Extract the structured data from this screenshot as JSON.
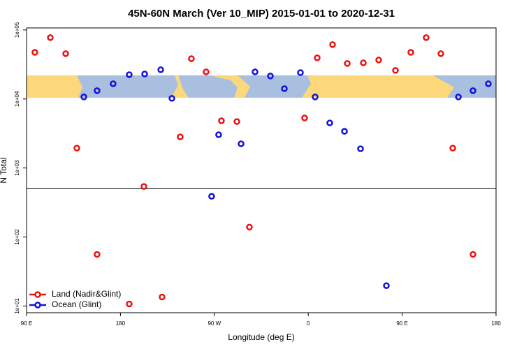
{
  "chart_data": {
    "type": "scatter",
    "title": "45N-60N March (Ver 10_MIP)   2015-01-01 to 2020-12-31",
    "x_label": "Longitude (deg E)",
    "y_label": "N Total",
    "xlim": [
      90,
      540
    ],
    "xticks": [
      {
        "value": 90,
        "label": "90 E"
      },
      180,
      {
        "value": 270,
        "label": "90 W"
      },
      {
        "value": 360,
        "label": "0"
      },
      {
        "value": 450,
        "label": "90 E"
      },
      {
        "value": 540,
        "label": "180"
      }
    ],
    "ylim": [
      8,
      107000
    ],
    "log_y": true,
    "yticks": [
      {
        "value": 10,
        "label": "1e+01"
      },
      {
        "value": 100,
        "label": "1e+02"
      },
      {
        "value": 1000,
        "label": "1e+03"
      },
      {
        "value": 10000,
        "label": "1e+04"
      },
      {
        "value": 100000,
        "label": "1e+05"
      }
    ],
    "hline": 500,
    "legend": "bottom-left",
    "series": [
      {
        "name": "Land (Nadir&Glint)",
        "color": "#ee1111",
        "x": [
          98.0,
          112.8,
          127.5,
          138.2,
          157.6,
          188.4,
          202.5,
          219.9,
          237.3,
          248.0,
          262.1,
          276.8,
          291.6,
          303.6,
          356.5,
          368.6,
          383.3,
          397.4,
          412.8,
          427.5,
          443.6,
          458.3,
          473.0,
          487.1,
          498.5,
          517.9
        ],
        "values": [
          47400,
          77400,
          45300,
          1940,
          56,
          10.7,
          540,
          13.5,
          2820,
          38400,
          24700,
          4830,
          4710,
          139,
          5300,
          39400,
          61300,
          32700,
          33400,
          36700,
          25900,
          47400,
          77400,
          45300,
          1940,
          56
        ]
      },
      {
        "name": "Ocean (Glint)",
        "color": "#1111dd",
        "x": [
          144.9,
          157.6,
          173.0,
          188.4,
          203.2,
          218.6,
          229.3,
          267.4,
          274.1,
          295.6,
          309.0,
          323.7,
          337.1,
          352.5,
          366.6,
          380.6,
          394.7,
          410.1,
          434.9,
          503.9,
          517.9,
          532.6
        ],
        "values": [
          10700,
          13200,
          16600,
          22500,
          23000,
          26500,
          10200,
          389,
          3030,
          2240,
          24700,
          21500,
          14100,
          24100,
          10700,
          4500,
          3400,
          1900,
          19.7,
          10700,
          13200,
          16600
        ]
      }
    ]
  }
}
